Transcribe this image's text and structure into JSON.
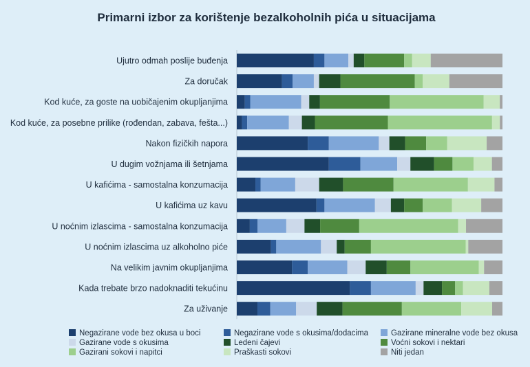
{
  "chart_data": {
    "type": "bar",
    "stacked": true,
    "orientation": "horizontal",
    "normalized": true,
    "title": "Primarni izbor za korištenje bezalkoholnih pića u situacijama",
    "categories": [
      "Ujutro odmah poslije buđenja",
      "Za  doručak",
      "Kod kuće, za goste na uobičajenim okupljanjima",
      "Kod kuće, za posebne prilike (rođendan, zabava, fešta...)",
      "Nakon fizičkih napora",
      "U dugim vožnjama ili šetnjama",
      "U kafićima - samostalna konzumacija",
      "U kafićima uz kavu",
      "U noćnim izlascima - samostalna konzumacija",
      "U noćnim izlascima uz alkoholno piće",
      "Na velikim javnim okupljanjima",
      "Kada trebate brzo nadoknaditi tekućinu",
      "Za uživanje"
    ],
    "series": [
      {
        "name": "Negazirane vode bez okusa u boci",
        "color": "#1c3f6e",
        "values": [
          29,
          17,
          3,
          2,
          27,
          35,
          7,
          30,
          5,
          13,
          21,
          43,
          8
        ]
      },
      {
        "name": "Negazirane vode s okusima/dodacima",
        "color": "#2e5c99",
        "values": [
          4,
          4,
          2,
          2,
          8,
          12,
          2,
          3,
          3,
          2,
          6,
          8,
          5
        ]
      },
      {
        "name": "Gazirane mineralne vode bez okusa",
        "color": "#7fa6d8",
        "values": [
          9,
          8,
          19,
          16,
          19,
          14,
          13,
          19,
          11,
          17,
          15,
          17,
          10
        ]
      },
      {
        "name": "Gazirane vode s okusima",
        "color": "#ccd9ea",
        "values": [
          2,
          2,
          3,
          5,
          4,
          5,
          9,
          6,
          7,
          6,
          7,
          3,
          8
        ]
      },
      {
        "name": "Ledeni čajevi",
        "color": "#214f2a",
        "values": [
          4,
          8,
          4,
          5,
          6,
          9,
          9,
          5,
          6,
          3,
          8,
          7,
          10
        ]
      },
      {
        "name": "Voćni sokovi i nektari",
        "color": "#4f8a3f",
        "values": [
          15,
          28,
          26,
          28,
          8,
          7,
          19,
          7,
          15,
          10,
          9,
          5,
          23
        ]
      },
      {
        "name": "Gazirani sokovi i napitci",
        "color": "#9ccf8d",
        "values": [
          3,
          3,
          35,
          40,
          8,
          8,
          28,
          11,
          38,
          36,
          26,
          3,
          23
        ]
      },
      {
        "name": "Praškasti sokovi",
        "color": "#c8e6c0",
        "values": [
          7,
          10,
          6,
          3,
          15,
          7,
          10,
          11,
          3,
          1,
          2,
          10,
          12
        ]
      },
      {
        "name": "Niti jedan",
        "color": "#a3a3a3",
        "values": [
          27,
          20,
          1,
          1,
          6,
          4,
          3,
          8,
          14,
          13,
          7,
          5,
          4
        ]
      }
    ],
    "xlim": [
      0,
      100
    ],
    "legend_position": "bottom",
    "grid": false
  }
}
